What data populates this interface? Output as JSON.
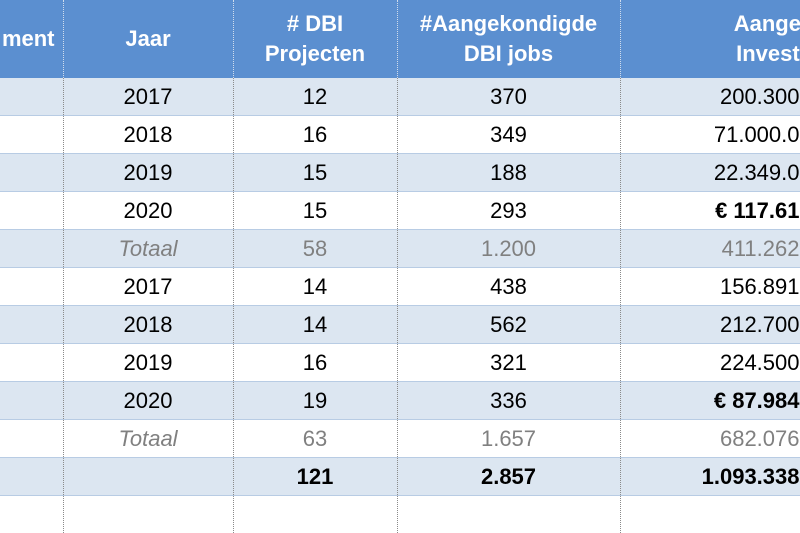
{
  "header": [
    "ment",
    "Jaar",
    "# DBI Projecten",
    "#Aangekondigde DBI jobs",
    "Aangekond Investering"
  ],
  "rows": [
    {
      "jaar": 2017,
      "projecten": 12,
      "jobs": 370,
      "investering": "200.300"
    },
    {
      "jaar": 2018,
      "projecten": 16,
      "jobs": 349,
      "investering": "71.000.0"
    },
    {
      "jaar": 2019,
      "projecten": 15,
      "jobs": 188,
      "investering": "22.349.0"
    },
    {
      "jaar": 2020,
      "projecten": 15,
      "jobs": 293,
      "investering": "€ 117.61"
    },
    {
      "jaar": "Totaal",
      "projecten": 58,
      "jobs": "1.200",
      "investering": "411.262"
    },
    {
      "jaar": 2017,
      "projecten": 14,
      "jobs": 438,
      "investering": "156.891"
    },
    {
      "jaar": 2018,
      "projecten": 14,
      "jobs": 562,
      "investering": "212.700"
    },
    {
      "jaar": 2019,
      "projecten": 16,
      "jobs": 321,
      "investering": "224.500"
    },
    {
      "jaar": 2020,
      "projecten": 19,
      "jobs": 336,
      "investering": "€ 87.984"
    },
    {
      "jaar": "Totaal",
      "projecten": 63,
      "jobs": "1.657",
      "investering": "682.076"
    }
  ],
  "total": {
    "projecten": 121,
    "jobs": "2.857",
    "investering": "1.093.338"
  }
}
